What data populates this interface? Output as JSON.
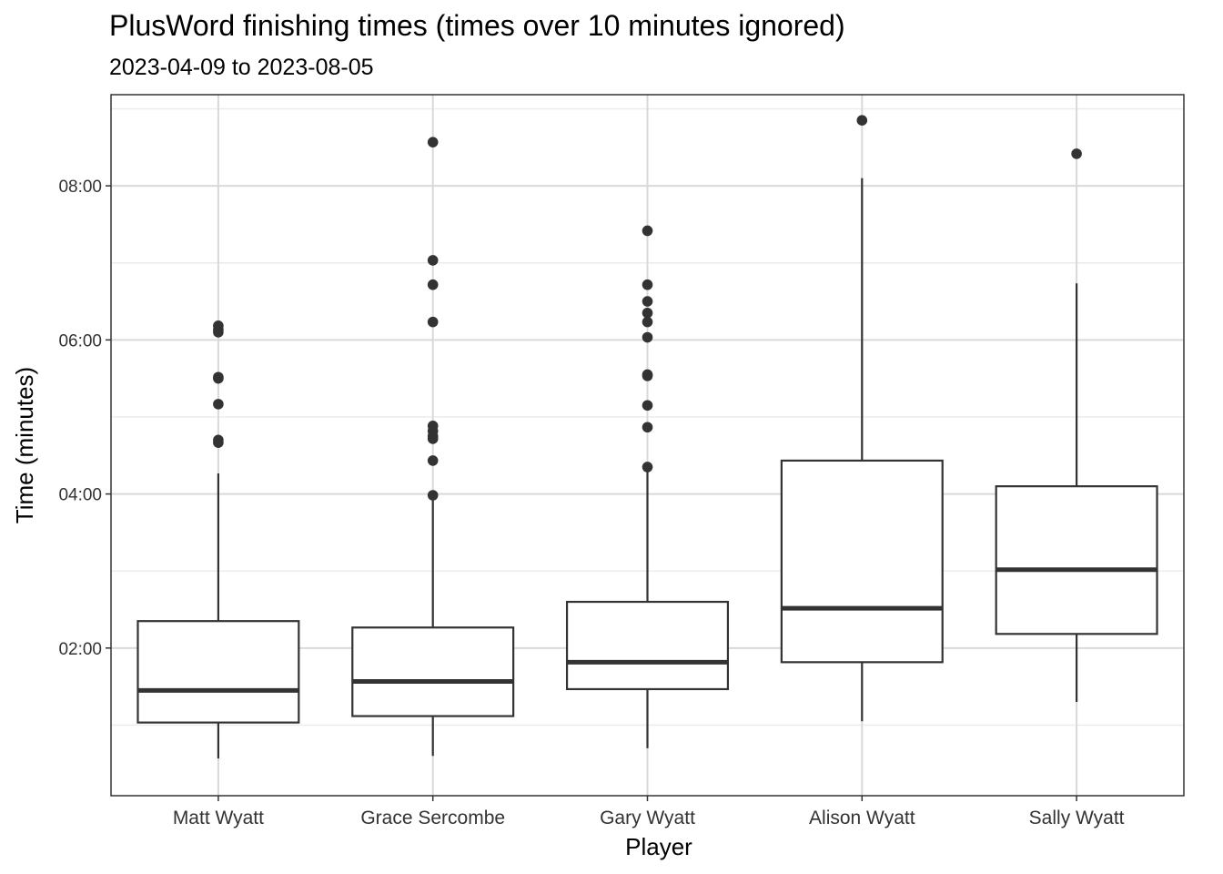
{
  "chart_data": {
    "type": "boxplot",
    "title": "PlusWord finishing times (times over 10 minutes ignored)",
    "subtitle": "2023-04-09 to 2023-08-05",
    "xlabel": "Player",
    "ylabel": "Time (minutes)",
    "y_unit": "seconds",
    "ylim": [
      5,
      551
    ],
    "y_ticks": [
      {
        "value": 120,
        "label": "02:00"
      },
      {
        "value": 240,
        "label": "04:00"
      },
      {
        "value": 360,
        "label": "06:00"
      },
      {
        "value": 480,
        "label": "08:00"
      }
    ],
    "y_minor_ticks": [
      60,
      180,
      300,
      420,
      540
    ],
    "categories": [
      "Matt Wyatt",
      "Grace Sercombe",
      "Gary Wyatt",
      "Alison Wyatt",
      "Sally Wyatt"
    ],
    "series": [
      {
        "name": "Matt Wyatt",
        "whisker_low": 34,
        "q1": 62,
        "median": 87,
        "q3": 141,
        "whisker_high": 256,
        "outliers": [
          371,
          368,
          366,
          331,
          330,
          310,
          282,
          280
        ]
      },
      {
        "name": "Grace Sercombe",
        "whisker_low": 36,
        "q1": 67,
        "median": 94,
        "q3": 136,
        "whisker_high": 235,
        "outliers": [
          514,
          422,
          403,
          374,
          293,
          289,
          285,
          283,
          266,
          239
        ]
      },
      {
        "name": "Gary Wyatt",
        "whisker_low": 42,
        "q1": 88,
        "median": 109,
        "q3": 156,
        "whisker_high": 262,
        "outliers": [
          445,
          403,
          390,
          381,
          374,
          362,
          333,
          332,
          309,
          292,
          261
        ]
      },
      {
        "name": "Alison Wyatt",
        "whisker_low": 63,
        "q1": 109,
        "median": 151,
        "q3": 266,
        "whisker_high": 486,
        "outliers": [
          531
        ]
      },
      {
        "name": "Sally Wyatt",
        "whisker_low": 78,
        "q1": 131,
        "median": 181,
        "q3": 246,
        "whisker_high": 404,
        "outliers": [
          505
        ]
      }
    ]
  }
}
